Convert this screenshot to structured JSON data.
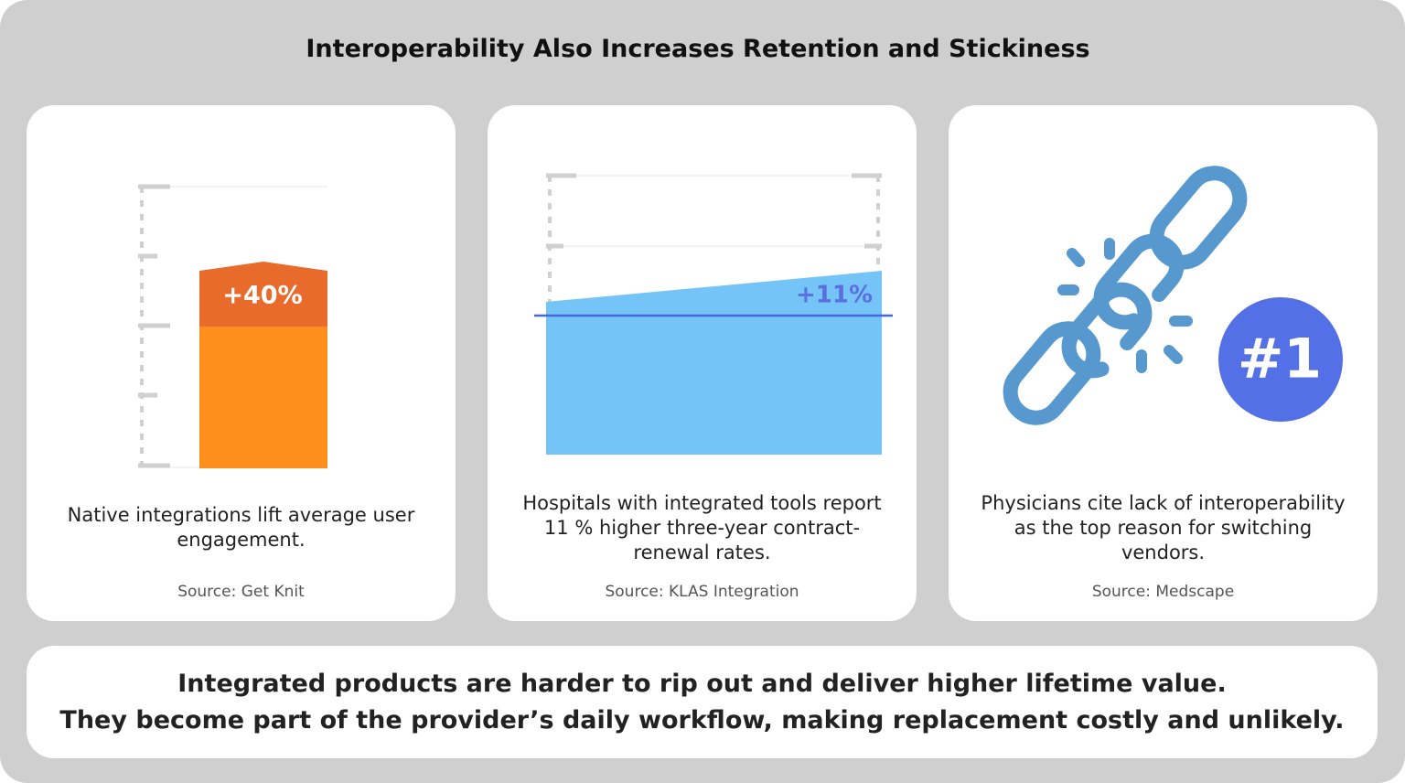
{
  "title": "Interoperability Also Increases Retention and Stickiness",
  "cards": [
    {
      "badge": "+40%",
      "text": "Native integrations lift average user engagement.",
      "source": "Source: Get Knit"
    },
    {
      "badge": "+11%",
      "text": "Hospitals with integrated tools report 11 % higher three-year contract-renewal rates.",
      "source": "Source: KLAS Integration"
    },
    {
      "badge": "#1",
      "text": "Physicians cite lack of interoperability as the top reason for switching vendors.",
      "source": "Source: Medscape"
    }
  ],
  "footer": {
    "lines": [
      "Integrated products are harder to rip out and deliver higher lifetime value.",
      "They become part of the provider’s daily workflow, making replacement costly and unlikely."
    ]
  }
}
